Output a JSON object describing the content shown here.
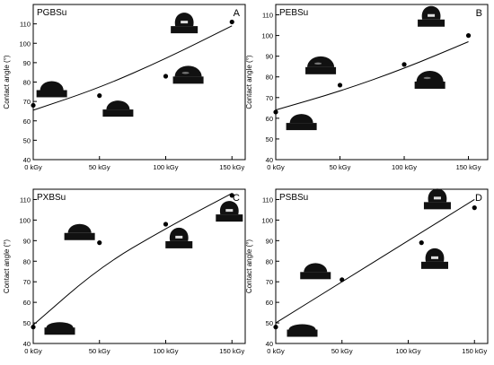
{
  "chart_data": [
    {
      "type": "scatter",
      "panel_name": "PGBSu",
      "panel_letter": "A",
      "ylabel": "Contact angle (°)",
      "ylim": [
        40,
        120
      ],
      "yticks": [
        40,
        50,
        60,
        70,
        80,
        90,
        100,
        110
      ],
      "xlim": [
        0,
        160
      ],
      "xticks": [
        0,
        50,
        100,
        150
      ],
      "xtick_labels": [
        "0 kGy",
        "50 kGy",
        "100 kGy",
        "150 kGy"
      ],
      "x": [
        0,
        50,
        100,
        150
      ],
      "y": [
        68,
        73,
        83,
        111
      ],
      "fit_curve": [
        [
          0,
          65.5
        ],
        [
          50,
          77
        ],
        [
          100,
          92
        ],
        [
          150,
          109
        ]
      ],
      "droplets": [
        {
          "x": 14,
          "y": 74,
          "shape": "half"
        },
        {
          "x": 64,
          "y": 64,
          "shape": "half"
        },
        {
          "x": 117,
          "y": 81,
          "shape": "wide-dome"
        },
        {
          "x": 114,
          "y": 107,
          "shape": "tall-dome"
        }
      ]
    },
    {
      "type": "scatter",
      "panel_name": "PEBSu",
      "panel_letter": "B",
      "ylabel": "Contact angle (°)",
      "ylim": [
        40,
        115
      ],
      "yticks": [
        40,
        50,
        60,
        70,
        80,
        90,
        100,
        110
      ],
      "xlim": [
        0,
        165
      ],
      "xticks": [
        0,
        50,
        100,
        150
      ],
      "xtick_labels": [
        "0 kGy",
        "50 kGy",
        "100 kGy",
        "150 kGy"
      ],
      "x": [
        0,
        50,
        100,
        150
      ],
      "y": [
        63,
        76,
        86,
        100
      ],
      "fit_curve": [
        [
          0,
          64
        ],
        [
          50,
          73
        ],
        [
          100,
          84
        ],
        [
          150,
          97
        ]
      ],
      "droplets": [
        {
          "x": 20,
          "y": 56,
          "shape": "half"
        },
        {
          "x": 35,
          "y": 83,
          "shape": "wide-dome"
        },
        {
          "x": 120,
          "y": 76,
          "shape": "wide-dome"
        },
        {
          "x": 121,
          "y": 106,
          "shape": "tall-dome"
        }
      ]
    },
    {
      "type": "scatter",
      "panel_name": "PXBSu",
      "panel_letter": "C",
      "ylabel": "Contact angle (°)",
      "ylim": [
        40,
        115
      ],
      "yticks": [
        40,
        50,
        60,
        70,
        80,
        90,
        100,
        110
      ],
      "xlim": [
        0,
        160
      ],
      "xticks": [
        0,
        50,
        100,
        150
      ],
      "xtick_labels": [
        "0 kGy",
        "50 kGy",
        "100 kGy",
        "150 kGy"
      ],
      "x": [
        0,
        50,
        100,
        150
      ],
      "y": [
        48,
        89,
        98,
        112
      ],
      "fit_curve": [
        [
          0,
          49
        ],
        [
          50,
          77
        ],
        [
          100,
          96
        ],
        [
          150,
          113
        ]
      ],
      "droplets": [
        {
          "x": 20,
          "y": 46,
          "shape": "flat"
        },
        {
          "x": 35,
          "y": 92,
          "shape": "half"
        },
        {
          "x": 110,
          "y": 88,
          "shape": "tall-dome"
        },
        {
          "x": 148,
          "y": 101,
          "shape": "tall-dome"
        }
      ]
    },
    {
      "type": "scatter",
      "panel_name": "PSBSu",
      "panel_letter": "D",
      "ylabel": "Contact angle (°)",
      "ylim": [
        40,
        115
      ],
      "yticks": [
        40,
        50,
        60,
        70,
        80,
        90,
        100,
        110
      ],
      "xlim": [
        0,
        160
      ],
      "xticks": [
        0,
        50,
        100,
        150
      ],
      "xtick_labels": [
        "0 kGy",
        "50 kGy",
        "100 kGy",
        "150 kGy"
      ],
      "x": [
        0,
        50,
        110,
        150
      ],
      "y": [
        48,
        71,
        89,
        106
      ],
      "fit_curve": [
        [
          0,
          50
        ],
        [
          50,
          70
        ],
        [
          100,
          90
        ],
        [
          150,
          110
        ]
      ],
      "droplets": [
        {
          "x": 20,
          "y": 45,
          "shape": "flat"
        },
        {
          "x": 30,
          "y": 73,
          "shape": "half"
        },
        {
          "x": 120,
          "y": 78,
          "shape": "tall-dome"
        },
        {
          "x": 122,
          "y": 107,
          "shape": "tall-dome"
        }
      ]
    }
  ]
}
